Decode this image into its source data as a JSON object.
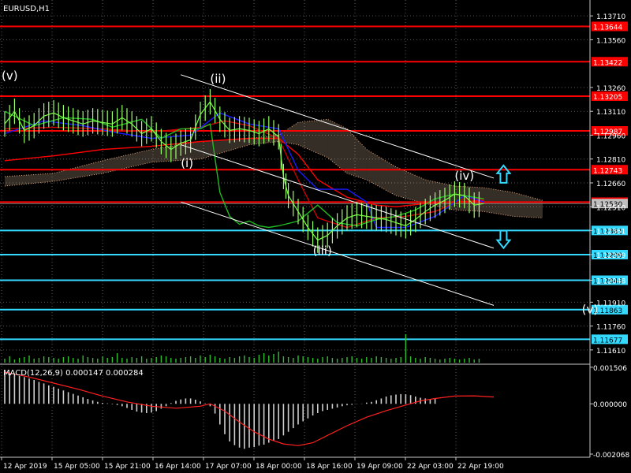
{
  "chart_data": [
    {
      "type": "candlestick",
      "title": "EURUSD,H1",
      "ylim": [
        1.1153,
        1.1379
      ],
      "y_ticks": [
        "1.13710",
        "1.13560",
        "1.13260",
        "1.13110",
        "1.12960",
        "1.12810",
        "1.12660",
        "1.12510",
        "1.12361",
        "1.12209",
        "1.12048",
        "1.11910",
        "1.11760",
        "1.11610"
      ],
      "x_ticks": [
        "12 Apr 2019",
        "15 Apr 05:00",
        "15 Apr 21:00",
        "16 Apr 14:00",
        "17 Apr 07:00",
        "18 Apr 00:00",
        "18 Apr 16:00",
        "19 Apr 09:00",
        "22 Apr 03:00",
        "22 Apr 19:00"
      ],
      "grid": true,
      "resistance_levels": [
        {
          "label": "1.13644",
          "value": 1.13644
        },
        {
          "label": "1.13422",
          "value": 1.13422
        },
        {
          "label": "1.13205",
          "value": 1.13205
        },
        {
          "label": "1.12987",
          "value": 1.12987
        },
        {
          "label": "1.12743",
          "value": 1.12743
        },
        {
          "label": "1.12539",
          "value": 1.12539
        }
      ],
      "support_levels": [
        {
          "label": "1.12361",
          "value": 1.12361
        },
        {
          "label": "1.12209",
          "value": 1.12209
        },
        {
          "label": "1.12048",
          "value": 1.12048
        },
        {
          "label": "1.11863",
          "value": 1.11863
        },
        {
          "label": "1.11677",
          "value": 1.11677
        }
      ],
      "current_price": {
        "label": "1.12530",
        "value": 1.1253
      },
      "wave_labels": [
        {
          "text": "(v)",
          "bar": 0,
          "price": 1.1331
        },
        {
          "text": "(ii)",
          "bar": 42,
          "price": 1.1329
        },
        {
          "text": "(i)",
          "bar": 36,
          "price": 1.1276
        },
        {
          "text": "(iii)",
          "bar": 63,
          "price": 1.1221
        },
        {
          "text": "(iv)",
          "bar": 92,
          "price": 1.1268
        },
        {
          "text": "(v)",
          "bar": 118,
          "price": 1.1184
        }
      ],
      "channel_lines": [
        {
          "from": [
            36,
            1.1334
          ],
          "to": [
            100,
            1.1269
          ]
        },
        {
          "from": [
            36,
            1.129
          ],
          "to": [
            100,
            1.1225
          ]
        },
        {
          "from": [
            36,
            1.1254
          ],
          "to": [
            100,
            1.1189
          ]
        }
      ],
      "arrows": [
        {
          "direction": "up",
          "bar": 102,
          "price": 1.1271
        },
        {
          "direction": "down",
          "bar": 102,
          "price": 1.1231
        }
      ],
      "price_path": [
        [
          0,
          1.1303
        ],
        [
          2,
          1.1311
        ],
        [
          4,
          1.1299
        ],
        [
          6,
          1.1302
        ],
        [
          8,
          1.1308
        ],
        [
          10,
          1.131
        ],
        [
          12,
          1.1307
        ],
        [
          14,
          1.1305
        ],
        [
          16,
          1.1303
        ],
        [
          18,
          1.1305
        ],
        [
          20,
          1.1304
        ],
        [
          22,
          1.1303
        ],
        [
          24,
          1.1307
        ],
        [
          26,
          1.1303
        ],
        [
          28,
          1.1297
        ],
        [
          30,
          1.13
        ],
        [
          32,
          1.1292
        ],
        [
          34,
          1.1287
        ],
        [
          36,
          1.1291
        ],
        [
          38,
          1.1293
        ],
        [
          40,
          1.1309
        ],
        [
          42,
          1.1317
        ],
        [
          44,
          1.1306
        ],
        [
          46,
          1.1299
        ],
        [
          48,
          1.13
        ],
        [
          50,
          1.1299
        ],
        [
          52,
          1.1297
        ],
        [
          54,
          1.13
        ],
        [
          56,
          1.1295
        ],
        [
          57,
          1.127
        ],
        [
          58,
          1.1258
        ],
        [
          60,
          1.1248
        ],
        [
          62,
          1.1238
        ],
        [
          64,
          1.123
        ],
        [
          66,
          1.1233
        ],
        [
          68,
          1.1239
        ],
        [
          70,
          1.1244
        ],
        [
          72,
          1.1246
        ],
        [
          74,
          1.1245
        ],
        [
          76,
          1.1244
        ],
        [
          78,
          1.1243
        ],
        [
          80,
          1.1241
        ],
        [
          82,
          1.1239
        ],
        [
          84,
          1.1243
        ],
        [
          86,
          1.1248
        ],
        [
          88,
          1.1252
        ],
        [
          90,
          1.1255
        ],
        [
          92,
          1.1259
        ],
        [
          94,
          1.1258
        ],
        [
          96,
          1.1252
        ],
        [
          98,
          1.1253
        ]
      ],
      "indicators": [
        {
          "color": "#ff0000",
          "points": [
            [
              0,
              1.128
            ],
            [
              10,
              1.1283
            ],
            [
              20,
              1.1287
            ],
            [
              30,
              1.1289
            ],
            [
              40,
              1.1292
            ],
            [
              50,
              1.1294
            ],
            [
              56,
              1.1294
            ],
            [
              60,
              1.1284
            ],
            [
              64,
              1.1268
            ],
            [
              70,
              1.1257
            ],
            [
              76,
              1.1252
            ],
            [
              80,
              1.1251
            ],
            [
              86,
              1.1253
            ],
            [
              92,
              1.1254
            ],
            [
              98,
              1.1255
            ]
          ]
        },
        {
          "color": "#cc0000",
          "points": [
            [
              0,
              1.13
            ],
            [
              10,
              1.1301
            ],
            [
              20,
              1.13
            ],
            [
              30,
              1.1298
            ],
            [
              40,
              1.1301
            ],
            [
              45,
              1.1305
            ],
            [
              50,
              1.1302
            ],
            [
              56,
              1.1294
            ],
            [
              60,
              1.1268
            ],
            [
              64,
              1.1244
            ],
            [
              70,
              1.1238
            ],
            [
              76,
              1.1244
            ],
            [
              82,
              1.1245
            ],
            [
              88,
              1.1248
            ],
            [
              94,
              1.1256
            ],
            [
              98,
              1.1256
            ]
          ]
        },
        {
          "color": "#1a1aff",
          "points": [
            [
              0,
              1.1297
            ],
            [
              8,
              1.1305
            ],
            [
              16,
              1.1302
            ],
            [
              22,
              1.1298
            ],
            [
              30,
              1.1294
            ],
            [
              38,
              1.1296
            ],
            [
              44,
              1.131
            ],
            [
              50,
              1.1303
            ],
            [
              56,
              1.13
            ],
            [
              60,
              1.1274
            ],
            [
              64,
              1.1262
            ],
            [
              70,
              1.1262
            ],
            [
              74,
              1.1254
            ],
            [
              76,
              1.1238
            ],
            [
              82,
              1.1238
            ],
            [
              88,
              1.1245
            ],
            [
              94,
              1.1258
            ],
            [
              98,
              1.1254
            ]
          ]
        },
        {
          "color": "#22bb22",
          "points": [
            [
              0,
              1.1311
            ],
            [
              6,
              1.1302
            ],
            [
              12,
              1.1307
            ],
            [
              18,
              1.1306
            ],
            [
              22,
              1.1301
            ],
            [
              28,
              1.1306
            ],
            [
              32,
              1.1294
            ],
            [
              36,
              1.13
            ],
            [
              40,
              1.13
            ],
            [
              42,
              1.1303
            ],
            [
              44,
              1.126
            ],
            [
              46,
              1.1245
            ],
            [
              48,
              1.124
            ],
            [
              50,
              1.1242
            ],
            [
              52,
              1.1239
            ],
            [
              54,
              1.1238
            ],
            [
              56,
              1.1239
            ],
            [
              60,
              1.1242
            ],
            [
              64,
              1.1252
            ],
            [
              68,
              1.1241
            ],
            [
              72,
              1.1239
            ],
            [
              76,
              1.1243
            ],
            [
              80,
              1.1245
            ],
            [
              84,
              1.1249
            ],
            [
              88,
              1.1256
            ],
            [
              92,
              1.1259
            ],
            [
              96,
              1.1257
            ],
            [
              98,
              1.1256
            ]
          ]
        }
      ],
      "cloud": {
        "upper": [
          [
            0,
            1.127
          ],
          [
            10,
            1.1272
          ],
          [
            20,
            1.128
          ],
          [
            30,
            1.1287
          ],
          [
            40,
            1.1292
          ],
          [
            50,
            1.1294
          ],
          [
            56,
            1.1296
          ],
          [
            60,
            1.1304
          ],
          [
            66,
            1.1306
          ],
          [
            70,
            1.13
          ],
          [
            74,
            1.1287
          ],
          [
            80,
            1.1276
          ],
          [
            86,
            1.1268
          ],
          [
            92,
            1.1264
          ],
          [
            98,
            1.1263
          ],
          [
            104,
            1.126
          ],
          [
            110,
            1.1255
          ]
        ],
        "lower": [
          [
            0,
            1.1264
          ],
          [
            10,
            1.1267
          ],
          [
            20,
            1.1272
          ],
          [
            30,
            1.1279
          ],
          [
            40,
            1.1281
          ],
          [
            50,
            1.129
          ],
          [
            56,
            1.1292
          ],
          [
            60,
            1.129
          ],
          [
            66,
            1.1282
          ],
          [
            70,
            1.1272
          ],
          [
            74,
            1.1268
          ],
          [
            80,
            1.1258
          ],
          [
            86,
            1.1253
          ],
          [
            92,
            1.1249
          ],
          [
            98,
            1.1248
          ],
          [
            104,
            1.1245
          ],
          [
            110,
            1.1244
          ]
        ]
      },
      "volume": [
        5,
        8,
        4,
        6,
        7,
        9,
        5,
        6,
        8,
        7,
        6,
        5,
        7,
        8,
        6,
        5,
        9,
        7,
        6,
        5,
        8,
        6,
        7,
        12,
        6,
        5,
        7,
        6,
        8,
        5,
        6,
        7,
        9,
        8,
        6,
        5,
        6,
        7,
        8,
        6,
        9,
        7,
        10,
        8,
        6,
        5,
        7,
        6,
        8,
        9,
        7,
        6,
        10,
        12,
        9,
        11,
        14,
        8,
        7,
        6,
        9,
        8,
        7,
        6,
        5,
        7,
        8,
        6,
        5,
        6,
        7,
        8,
        6,
        5,
        7,
        6,
        8,
        7,
        6,
        5,
        6,
        7,
        36,
        8,
        6,
        5,
        7,
        6,
        5,
        4,
        5,
        6,
        5,
        4,
        5,
        6,
        4,
        5
      ]
    },
    {
      "type": "bar",
      "title": "MACD(12,26,9) 0.000147 0.000284",
      "ylim": [
        -0.002068,
        0.0015
      ],
      "y_ticks": [
        "0.001506",
        "0.000000",
        "-0.002068"
      ],
      "histogram": [
        0.0013,
        0.00128,
        0.00122,
        0.00115,
        0.0011,
        0.00104,
        0.00098,
        0.0009,
        0.00084,
        0.00076,
        0.0007,
        0.00062,
        0.00055,
        0.00048,
        0.00041,
        0.00034,
        0.00027,
        0.0002,
        0.00014,
        8e-05,
        4e-05,
        2e-05,
        -2e-05,
        -5e-05,
        -0.0001,
        -0.00017,
        -0.00025,
        -0.00032,
        -0.00036,
        -0.00038,
        -0.00036,
        -0.0003,
        -0.0002,
        -0.0001,
        3e-05,
        0.00012,
        0.00018,
        0.00022,
        0.00022,
        0.00017,
        0.0001,
        2e-05,
        -0.0001,
        -0.0004,
        -0.00085,
        -0.00125,
        -0.00155,
        -0.0017,
        -0.0018,
        -0.00185,
        -0.0018,
        -0.00178,
        -0.00172,
        -0.00168,
        -0.0016,
        -0.00152,
        -0.00145,
        -0.0013,
        -0.00115,
        -0.001,
        -0.00085,
        -0.00072,
        -0.0006,
        -0.00048,
        -0.00038,
        -0.0003,
        -0.00025,
        -0.0002,
        -0.00015,
        -0.0001,
        -6e-05,
        -4e-05,
        -1e-05,
        1e-05,
        5e-05,
        8e-05,
        0.00015,
        0.00022,
        0.0003,
        0.00035,
        0.00038,
        0.0004,
        0.00039,
        0.00036,
        0.0003,
        0.00025,
        0.00022,
        0.0002,
        0.0002
      ],
      "signal": [
        [
          0,
          0.0013
        ],
        [
          5,
          0.0011
        ],
        [
          10,
          0.00085
        ],
        [
          15,
          0.0006
        ],
        [
          20,
          0.00032
        ],
        [
          25,
          8e-05
        ],
        [
          30,
          -0.0001
        ],
        [
          35,
          -0.00018
        ],
        [
          40,
          -0.0001
        ],
        [
          42,
          0.0
        ],
        [
          45,
          -0.0003
        ],
        [
          48,
          -0.00075
        ],
        [
          51,
          -0.00115
        ],
        [
          54,
          -0.00145
        ],
        [
          57,
          -0.00165
        ],
        [
          60,
          -0.00172
        ],
        [
          63,
          -0.0016
        ],
        [
          66,
          -0.0013
        ],
        [
          70,
          -0.0009
        ],
        [
          74,
          -0.00055
        ],
        [
          78,
          -0.00028
        ],
        [
          82,
          -5e-05
        ],
        [
          85,
          0.00012
        ],
        [
          88,
          0.00022
        ],
        [
          92,
          0.00032
        ],
        [
          96,
          0.00033
        ],
        [
          100,
          0.00028
        ]
      ]
    }
  ]
}
